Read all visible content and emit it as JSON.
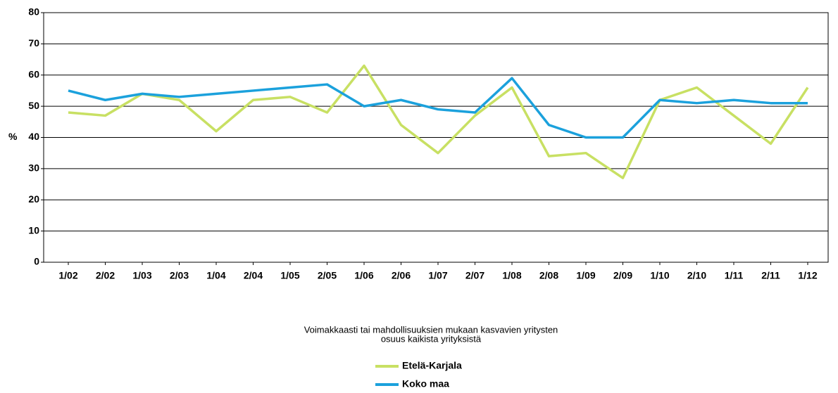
{
  "chart_data": {
    "type": "line",
    "ylabel": "%",
    "xlabel": [
      "Voimakkaasti tai mahdollisuuksien mukaan kasvavien yritysten",
      "osuus kaikista yrityksistä"
    ],
    "categories": [
      "1/02",
      "2/02",
      "1/03",
      "2/03",
      "1/04",
      "2/04",
      "1/05",
      "2/05",
      "1/06",
      "2/06",
      "1/07",
      "2/07",
      "1/08",
      "2/08",
      "1/09",
      "2/09",
      "1/10",
      "2/10",
      "1/11",
      "2/11",
      "1/12"
    ],
    "series": [
      {
        "name": "Etelä-Karjala",
        "color": "#c8e063",
        "values": [
          48,
          47,
          54,
          52,
          42,
          52,
          53,
          48,
          63,
          44,
          35,
          47,
          56,
          34,
          35,
          27,
          52,
          56,
          47,
          38,
          56
        ]
      },
      {
        "name": "Koko maa",
        "color": "#1ba1dc",
        "values": [
          55,
          52,
          54,
          53,
          54,
          55,
          56,
          57,
          50,
          52,
          49,
          48,
          59,
          44,
          40,
          40,
          52,
          51,
          52,
          51,
          51
        ]
      }
    ],
    "ylim": [
      0,
      80
    ],
    "yticks": [
      0,
      10,
      20,
      30,
      40,
      50,
      60,
      70,
      80
    ],
    "grid": true
  }
}
